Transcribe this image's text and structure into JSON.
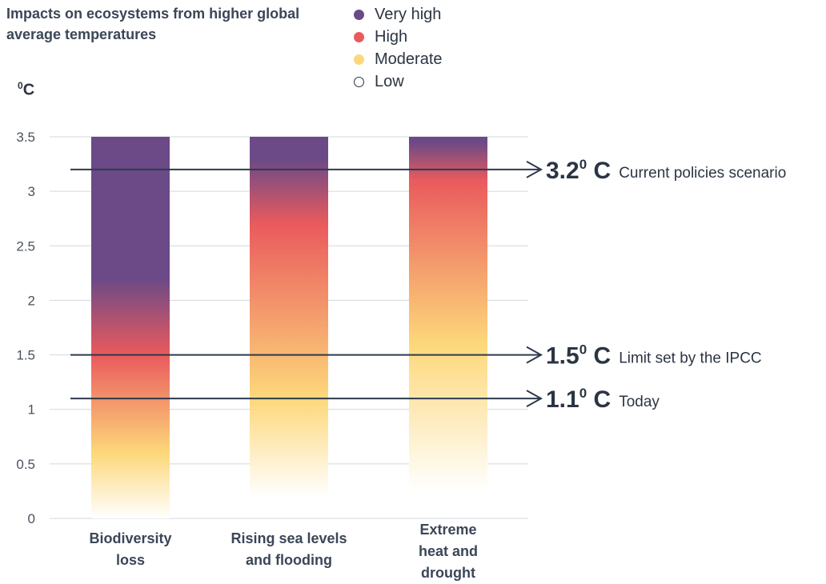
{
  "chart_data": {
    "type": "bar",
    "title": "Impacts on ecosystems from higher global average temperatures",
    "ylabel": "0C",
    "ylabel_main": "C",
    "ylabel_sup": "0",
    "ylim": [
      0,
      3.5
    ],
    "yticks": [
      "0",
      "0.5",
      "1",
      "1.5",
      "2",
      "2.5",
      "3",
      "3.5"
    ],
    "grid": true,
    "legend_position": "top",
    "legend": [
      {
        "label": "Very high",
        "color": "#6b4a87",
        "key": "very_high"
      },
      {
        "label": "High",
        "color": "#ea5a5d",
        "key": "high"
      },
      {
        "label": "Moderate",
        "color": "#fdd87a",
        "key": "moderate"
      },
      {
        "label": "Low",
        "color": "#ffffff",
        "key": "low"
      }
    ],
    "categories": [
      {
        "label_lines": [
          "Biodiversity",
          "loss"
        ],
        "bottom": 0,
        "top": 3.5,
        "transitions": [
          {
            "t": 0.0,
            "level": "low"
          },
          {
            "t": 0.6,
            "level": "moderate"
          },
          {
            "t": 1.5,
            "level": "high"
          },
          {
            "t": 2.2,
            "level": "very_high"
          },
          {
            "t": 3.5,
            "level": "very_high"
          }
        ]
      },
      {
        "label_lines": [
          "Rising sea levels",
          "and flooding"
        ],
        "bottom": 0.2,
        "top": 3.5,
        "transitions": [
          {
            "t": 0.2,
            "level": "low"
          },
          {
            "t": 1.1,
            "level": "moderate"
          },
          {
            "t": 2.7,
            "level": "high"
          },
          {
            "t": 3.3,
            "level": "very_high"
          },
          {
            "t": 3.5,
            "level": "very_high"
          }
        ]
      },
      {
        "label_lines": [
          "Extreme",
          "heat and",
          "drought"
        ],
        "bottom": 0.25,
        "top": 3.5,
        "transitions": [
          {
            "t": 0.25,
            "level": "low"
          },
          {
            "t": 1.6,
            "level": "moderate"
          },
          {
            "t": 3.1,
            "level": "high"
          },
          {
            "t": 3.45,
            "level": "very_high"
          },
          {
            "t": 3.5,
            "level": "very_high"
          }
        ]
      }
    ],
    "annotations": [
      {
        "value": 3.2,
        "value_text": "3.2",
        "sup": "0",
        "unit": " C",
        "label": "Current policies scenario"
      },
      {
        "value": 1.5,
        "value_text": "1.5",
        "sup": "0",
        "unit": " C",
        "label": "Limit set by the IPCC"
      },
      {
        "value": 1.1,
        "value_text": "1.1",
        "sup": "0",
        "unit": " C",
        "label": "Today"
      }
    ],
    "colors": {
      "grid": "#d4d7dc",
      "arrow": "#2e3a4c"
    }
  }
}
